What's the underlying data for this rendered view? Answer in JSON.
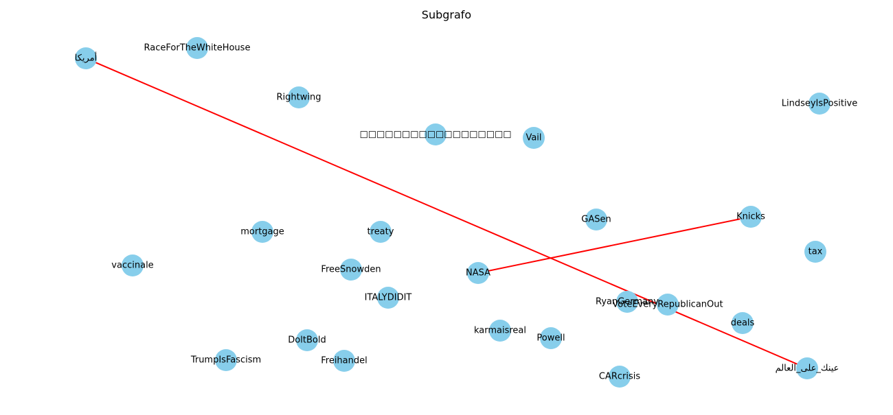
{
  "title": "Subgrafo",
  "node_color": "#87ceeb",
  "edge_color": "#ff0000",
  "nodes": [
    {
      "id": "amrika",
      "label": "أمريكا"
    },
    {
      "id": "race",
      "label": "RaceForTheWhiteHouse"
    },
    {
      "id": "rightwing",
      "label": "Rightwing"
    },
    {
      "id": "boxes",
      "label": "□□□□□□□□□□□□□□□□□□"
    },
    {
      "id": "vail",
      "label": "Vail"
    },
    {
      "id": "lindsey",
      "label": "LindseyIsPositive"
    },
    {
      "id": "gasen",
      "label": "GASen"
    },
    {
      "id": "knicks",
      "label": "Knicks"
    },
    {
      "id": "mortgage",
      "label": "mortgage"
    },
    {
      "id": "treaty",
      "label": "treaty"
    },
    {
      "id": "tax",
      "label": "tax"
    },
    {
      "id": "vaccinale",
      "label": "vaccinale"
    },
    {
      "id": "freesnowden",
      "label": "FreeSnowden"
    },
    {
      "id": "nasa",
      "label": "NASA"
    },
    {
      "id": "italydidit",
      "label": "ITALYDIDIT"
    },
    {
      "id": "ryan",
      "label": "RyanGermany"
    },
    {
      "id": "voteevery",
      "label": "VoteEveryRepublicanOut"
    },
    {
      "id": "deals",
      "label": "deals"
    },
    {
      "id": "karma",
      "label": "karmaisreal"
    },
    {
      "id": "powell",
      "label": "Powell"
    },
    {
      "id": "doitbold",
      "label": "DoltBold"
    },
    {
      "id": "trump",
      "label": "TrumpIsFascism"
    },
    {
      "id": "freihandel",
      "label": "Freihandel"
    },
    {
      "id": "carcrisis",
      "label": "CARcrisis"
    },
    {
      "id": "aynak",
      "label": "عينك_على_العالم"
    }
  ],
  "edges": [
    {
      "source": "amrika",
      "target": "aynak"
    },
    {
      "source": "nasa",
      "target": "knicks"
    }
  ]
}
